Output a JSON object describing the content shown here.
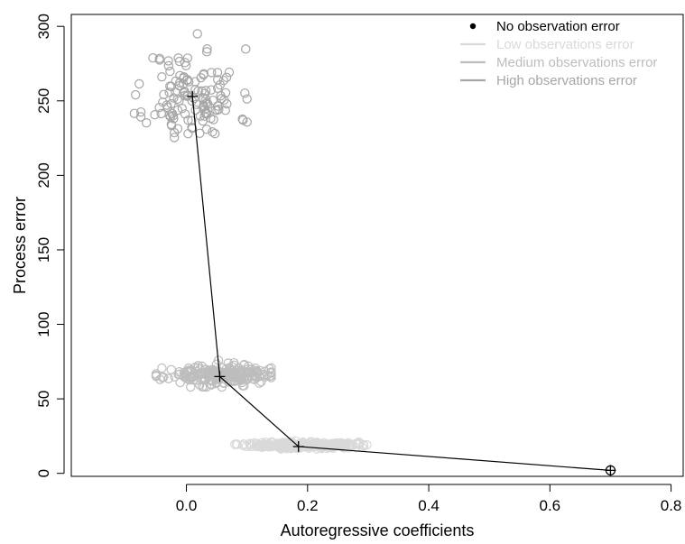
{
  "chart_data": {
    "type": "scatter",
    "xlabel": "Autoregressive coefficients",
    "ylabel": "Process error",
    "xlim": [
      -0.19,
      0.82
    ],
    "ylim": [
      -2,
      308
    ],
    "xticks": [
      0.0,
      0.2,
      0.4,
      0.6,
      0.8
    ],
    "xtick_labels": [
      "0.0",
      "0.2",
      "0.4",
      "0.6",
      "0.8"
    ],
    "yticks": [
      0,
      50,
      100,
      150,
      200,
      250,
      300
    ],
    "ytick_labels": [
      "0",
      "50",
      "100",
      "150",
      "200",
      "250",
      "300"
    ],
    "grid": false,
    "legend_position": "top-right",
    "legend": [
      {
        "label": "No observation error",
        "marker": "dot",
        "color": "#000000"
      },
      {
        "label": "Low observations error",
        "marker": "line",
        "color": "#d9d9d9"
      },
      {
        "label": "Medium observations error",
        "marker": "line",
        "color": "#bdbdbd"
      },
      {
        "label": "High observations error",
        "marker": "line",
        "color": "#a6a6a6"
      }
    ],
    "series": [
      {
        "name": "High observations error",
        "color": "#a6a6a6",
        "cloud": {
          "center": [
            0.01,
            253
          ],
          "sd": [
            0.038,
            16
          ],
          "count": 130,
          "seed": 11,
          "bounds_x": [
            -0.09,
            0.1
          ],
          "bounds_y": [
            222,
            295
          ]
        }
      },
      {
        "name": "Medium observations error",
        "color": "#bdbdbd",
        "cloud": {
          "center": [
            0.055,
            66
          ],
          "sd": [
            0.045,
            3.2
          ],
          "count": 220,
          "seed": 23,
          "bounds_x": [
            -0.05,
            0.14
          ],
          "bounds_y": [
            58,
            76
          ]
        }
      },
      {
        "name": "Low observations error",
        "color": "#d9d9d9",
        "cloud": {
          "center": [
            0.19,
            19
          ],
          "sd": [
            0.045,
            1.1
          ],
          "count": 260,
          "seed": 37,
          "bounds_x": [
            0.08,
            0.3
          ],
          "bounds_y": [
            16,
            22
          ]
        }
      },
      {
        "name": "No observation error",
        "color": "#000000",
        "points": [
          [
            0.7,
            2
          ]
        ]
      }
    ],
    "path": {
      "color": "#000000",
      "points": [
        [
          0.01,
          253
        ],
        [
          0.055,
          65
        ],
        [
          0.185,
          18
        ],
        [
          0.7,
          2
        ]
      ]
    }
  }
}
